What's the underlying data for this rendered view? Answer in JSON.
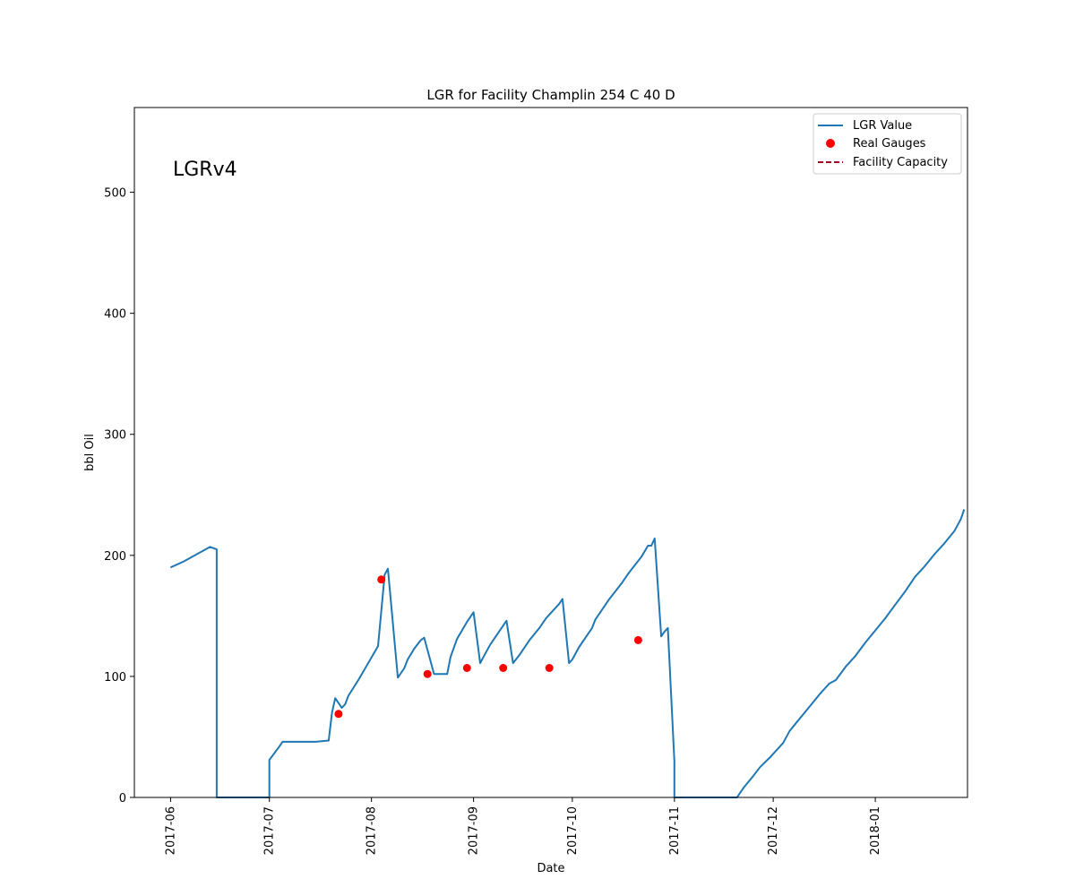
{
  "chart_data": {
    "type": "line",
    "title": "LGR for Facility Champlin 254 C 40 D",
    "xlabel": "Date",
    "ylabel": "bbl Oil",
    "annotation": "LGRv4",
    "xlim": [
      "2017-05-21",
      "2018-01-29"
    ],
    "ylim": [
      0,
      570
    ],
    "x_ticks": [
      "2017-06",
      "2017-07",
      "2017-08",
      "2017-09",
      "2017-10",
      "2017-11",
      "2017-12",
      "2018-01"
    ],
    "y_ticks": [
      0,
      100,
      200,
      300,
      400,
      500
    ],
    "grid": false,
    "legend_placement": "top-right",
    "series": [
      {
        "name": "LGR Value",
        "kind": "line",
        "color": "#1f77b4",
        "points": [
          [
            "2017-06-01",
            190
          ],
          [
            "2017-06-05",
            195
          ],
          [
            "2017-06-09",
            201
          ],
          [
            "2017-06-13",
            207
          ],
          [
            "2017-06-15",
            205
          ],
          [
            "2017-06-15",
            0
          ],
          [
            "2017-07-01",
            0
          ],
          [
            "2017-07-01",
            31
          ],
          [
            "2017-07-04",
            42
          ],
          [
            "2017-07-05",
            46
          ],
          [
            "2017-07-10",
            46
          ],
          [
            "2017-07-15",
            46
          ],
          [
            "2017-07-19",
            47
          ],
          [
            "2017-07-20",
            70
          ],
          [
            "2017-07-21",
            82
          ],
          [
            "2017-07-23",
            74
          ],
          [
            "2017-07-24",
            77
          ],
          [
            "2017-07-25",
            84
          ],
          [
            "2017-07-28",
            97
          ],
          [
            "2017-07-31",
            111
          ],
          [
            "2017-08-03",
            125
          ],
          [
            "2017-08-05",
            184
          ],
          [
            "2017-08-06",
            189
          ],
          [
            "2017-08-09",
            99
          ],
          [
            "2017-08-11",
            107
          ],
          [
            "2017-08-12",
            114
          ],
          [
            "2017-08-14",
            123
          ],
          [
            "2017-08-16",
            130
          ],
          [
            "2017-08-17",
            132
          ],
          [
            "2017-08-20",
            102
          ],
          [
            "2017-08-24",
            102
          ],
          [
            "2017-08-25",
            116
          ],
          [
            "2017-08-27",
            131
          ],
          [
            "2017-08-30",
            145
          ],
          [
            "2017-09-01",
            153
          ],
          [
            "2017-09-03",
            111
          ],
          [
            "2017-09-04",
            116
          ],
          [
            "2017-09-06",
            126
          ],
          [
            "2017-09-09",
            138
          ],
          [
            "2017-09-11",
            146
          ],
          [
            "2017-09-13",
            111
          ],
          [
            "2017-09-15",
            118
          ],
          [
            "2017-09-18",
            130
          ],
          [
            "2017-09-21",
            140
          ],
          [
            "2017-09-23",
            148
          ],
          [
            "2017-09-27",
            160
          ],
          [
            "2017-09-28",
            164
          ],
          [
            "2017-09-30",
            111
          ],
          [
            "2017-10-01",
            114
          ],
          [
            "2017-10-03",
            124
          ],
          [
            "2017-10-07",
            140
          ],
          [
            "2017-10-08",
            147
          ],
          [
            "2017-10-12",
            163
          ],
          [
            "2017-10-16",
            177
          ],
          [
            "2017-10-18",
            185
          ],
          [
            "2017-10-22",
            199
          ],
          [
            "2017-10-24",
            208
          ],
          [
            "2017-10-25",
            208
          ],
          [
            "2017-10-26",
            214
          ],
          [
            "2017-10-28",
            133
          ],
          [
            "2017-10-29",
            137
          ],
          [
            "2017-10-30",
            140
          ],
          [
            "2017-11-01",
            30
          ],
          [
            "2017-11-01",
            0
          ],
          [
            "2017-11-20",
            0
          ],
          [
            "2017-11-22",
            8
          ],
          [
            "2017-11-25",
            18
          ],
          [
            "2017-11-27",
            25
          ],
          [
            "2017-11-30",
            33
          ],
          [
            "2017-12-04",
            45
          ],
          [
            "2017-12-06",
            55
          ],
          [
            "2017-12-09",
            65
          ],
          [
            "2017-12-12",
            75
          ],
          [
            "2017-12-15",
            85
          ],
          [
            "2017-12-18",
            94
          ],
          [
            "2017-12-20",
            97
          ],
          [
            "2017-12-23",
            108
          ],
          [
            "2017-12-26",
            117
          ],
          [
            "2017-12-29",
            128
          ],
          [
            "2018-01-01",
            138
          ],
          [
            "2018-01-04",
            148
          ],
          [
            "2018-01-07",
            159
          ],
          [
            "2018-01-10",
            170
          ],
          [
            "2018-01-13",
            182
          ],
          [
            "2018-01-16",
            191
          ],
          [
            "2018-01-19",
            201
          ],
          [
            "2018-01-22",
            210
          ],
          [
            "2018-01-25",
            220
          ],
          [
            "2018-01-27",
            230
          ],
          [
            "2018-01-28",
            238
          ]
        ]
      },
      {
        "name": "Real Gauges",
        "kind": "scatter",
        "color": "#ff0000",
        "points": [
          [
            "2017-07-22",
            69
          ],
          [
            "2017-08-04",
            180
          ],
          [
            "2017-08-18",
            102
          ],
          [
            "2017-08-30",
            107
          ],
          [
            "2017-09-10",
            107
          ],
          [
            "2017-09-24",
            107
          ],
          [
            "2017-10-21",
            130
          ]
        ]
      },
      {
        "name": "Facility Capacity",
        "kind": "dashed-line",
        "color": "#a50026",
        "points": []
      }
    ]
  }
}
